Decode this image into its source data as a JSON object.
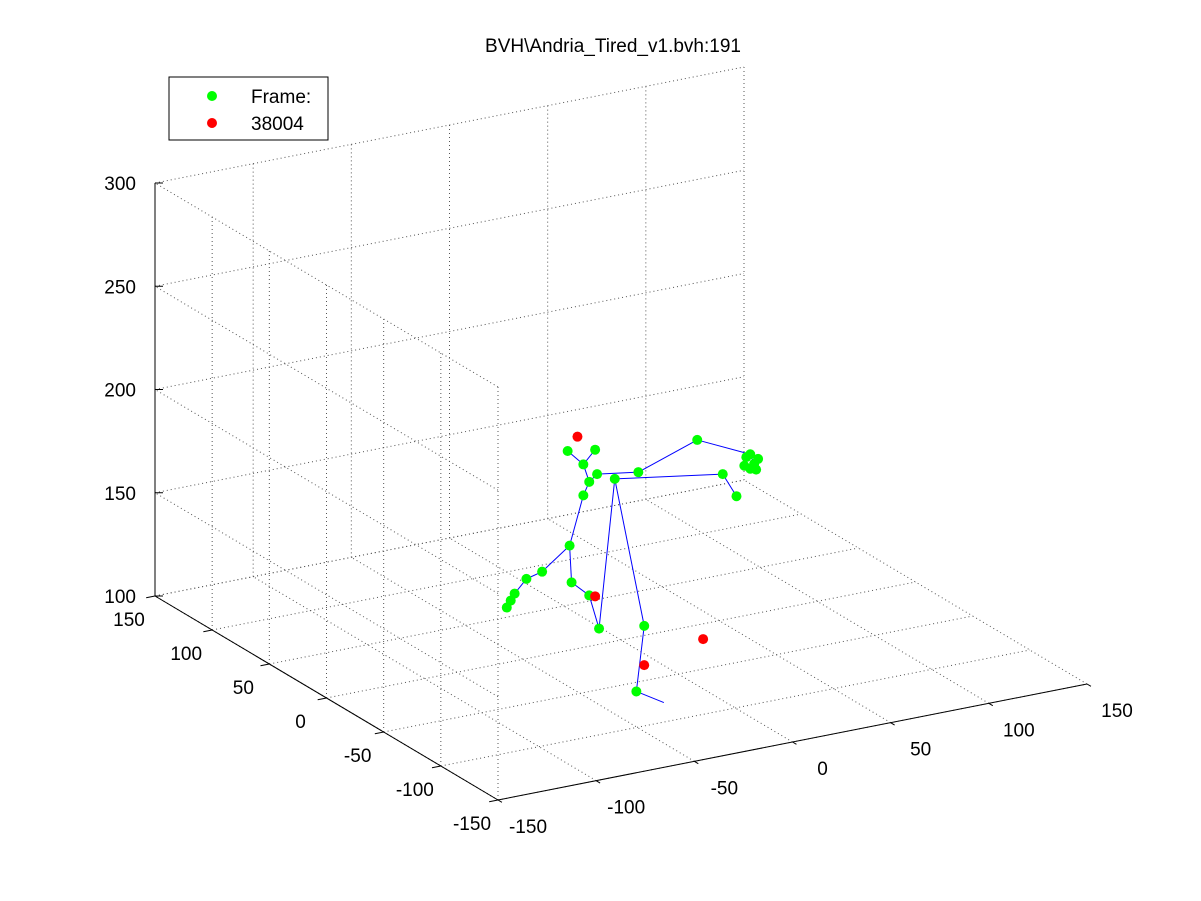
{
  "chart_data": {
    "type": "scatter",
    "title": "BVH\\Andria_Tired_v1.bvh:191",
    "grid": true,
    "view": "3d",
    "legend_location": "top-left",
    "legend": [
      {
        "label": "Frame:",
        "color": "#00ff00"
      },
      {
        "label": "38004",
        "color": "#ff0000"
      }
    ],
    "axes": {
      "x": {
        "range": [
          -150,
          150
        ],
        "ticks": [
          "-150",
          "-100",
          "-50",
          "0",
          "50",
          "100",
          "150"
        ]
      },
      "y": {
        "range": [
          -150,
          150
        ],
        "ticks": [
          "-150",
          "-100",
          "-50",
          "0",
          "50",
          "100",
          "150"
        ]
      },
      "z": {
        "range": [
          100,
          300
        ],
        "ticks": [
          "100",
          "150",
          "200",
          "250",
          "300"
        ]
      }
    },
    "colors": {
      "green_markers": "#00ff00",
      "red_markers": "#ff0000",
      "bones": "#0000ff",
      "grid": "#555555"
    },
    "bones": [
      [
        [
          -17,
          112
        ],
        [
          -9,
          183
        ]
      ],
      [
        [
          -9,
          183
        ],
        [
          46,
          175
        ]
      ],
      [
        [
          46,
          175
        ],
        [
          53,
          163
        ]
      ],
      [
        [
          -9,
          183
        ],
        [
          6,
          109
        ]
      ],
      [
        [
          6,
          109
        ],
        [
          2,
          78
        ]
      ],
      [
        [
          2,
          78
        ],
        [
          16,
          70
        ]
      ],
      [
        [
          -17,
          112
        ],
        [
          -22,
          129
        ]
      ],
      [
        [
          -22,
          129
        ],
        [
          -31,
          137
        ]
      ],
      [
        [
          -31,
          137
        ],
        [
          -32,
          155
        ]
      ],
      [
        [
          -32,
          155
        ],
        [
          -25,
          178
        ]
      ],
      [
        [
          -25,
          178
        ],
        [
          -22,
          184
        ]
      ],
      [
        [
          -22,
          184
        ],
        [
          -25,
          193
        ]
      ],
      [
        [
          -25,
          193
        ],
        [
          -19,
          199
        ]
      ],
      [
        [
          -25,
          193
        ],
        [
          -33,
          201
        ]
      ],
      [
        [
          -22,
          184
        ],
        [
          -18,
          187
        ]
      ],
      [
        [
          -18,
          187
        ],
        [
          3,
          184
        ]
      ],
      [
        [
          3,
          184
        ],
        [
          33,
          194
        ]
      ],
      [
        [
          33,
          194
        ],
        [
          60,
          182
        ]
      ],
      [
        [
          60,
          182
        ],
        [
          62,
          177
        ]
      ],
      [
        [
          -32,
          155
        ],
        [
          -46,
          145
        ]
      ],
      [
        [
          -46,
          145
        ],
        [
          -54,
          143
        ]
      ],
      [
        [
          -54,
          143
        ],
        [
          -60,
          137
        ]
      ],
      [
        [
          -60,
          137
        ],
        [
          -62,
          134
        ]
      ],
      [
        [
          -62,
          134
        ],
        [
          -64,
          131
        ]
      ]
    ],
    "green_points": [
      {
        "x": -17,
        "z": 112
      },
      {
        "x": -9,
        "z": 183
      },
      {
        "x": 46,
        "z": 175
      },
      {
        "x": 53,
        "z": 163
      },
      {
        "x": 6,
        "z": 109
      },
      {
        "x": 2,
        "z": 78
      },
      {
        "x": -22,
        "z": 129
      },
      {
        "x": -31,
        "z": 137
      },
      {
        "x": -32,
        "z": 155
      },
      {
        "x": -25,
        "z": 178
      },
      {
        "x": -22,
        "z": 184
      },
      {
        "x": -25,
        "z": 193
      },
      {
        "x": -19,
        "z": 199
      },
      {
        "x": -33,
        "z": 201
      },
      {
        "x": -18,
        "z": 187
      },
      {
        "x": 3,
        "z": 184
      },
      {
        "x": 33,
        "z": 194
      },
      {
        "x": 60,
        "z": 182
      },
      {
        "x": 62,
        "z": 177
      },
      {
        "x": 64,
        "z": 179
      },
      {
        "x": 60,
        "z": 175
      },
      {
        "x": 63,
        "z": 174
      },
      {
        "x": 57,
        "z": 177
      },
      {
        "x": 58,
        "z": 181
      },
      {
        "x": -46,
        "z": 145
      },
      {
        "x": -54,
        "z": 143
      },
      {
        "x": -60,
        "z": 137
      },
      {
        "x": -62,
        "z": 134
      },
      {
        "x": -64,
        "z": 131
      }
    ],
    "red_points": [
      {
        "x": -19,
        "z": 128
      },
      {
        "x": -28,
        "z": 207
      },
      {
        "x": 36,
        "z": 97
      },
      {
        "x": 6,
        "z": 90
      }
    ]
  }
}
